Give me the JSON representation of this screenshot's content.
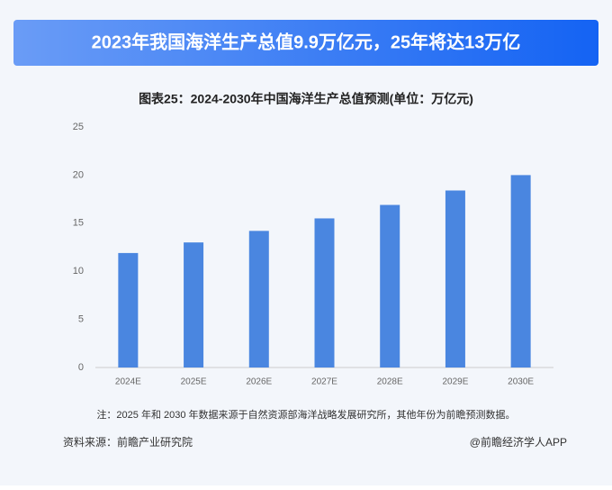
{
  "banner": "2023年我国海洋生产总值9.9万亿元，25年将达13万亿",
  "chart_data": {
    "type": "bar",
    "title": "图表25：2024-2030年中国海洋生产总值预测(单位：万亿元)",
    "categories": [
      "2024E",
      "2025E",
      "2026E",
      "2027E",
      "2028E",
      "2029E",
      "2030E"
    ],
    "values": [
      11.9,
      13,
      14.2,
      15.5,
      16.9,
      18.4,
      20
    ],
    "color": "#4a86e0",
    "ylim": [
      0,
      25
    ],
    "yticks": [
      0,
      5,
      10,
      15,
      20,
      25
    ],
    "grid": false
  },
  "note": "注：2025 年和 2030 年数据来源于自然资源部海洋战略发展研究所，其他年份为前瞻预测数据。",
  "source": "资料来源：前瞻产业研究院",
  "brand": "@前瞻经济学人APP"
}
